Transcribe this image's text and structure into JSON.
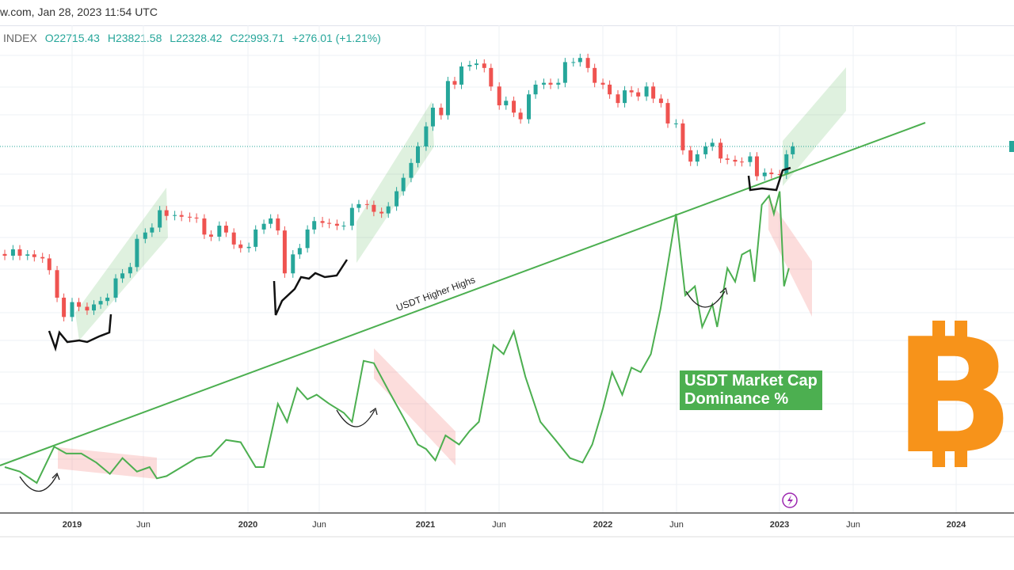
{
  "header": {
    "source_date": "w.com, Jan 28, 2023 11:54 UTC"
  },
  "ohlc": {
    "symbol": "INDEX",
    "open": "O22715.43",
    "high": "H23821.58",
    "low": "L22328.42",
    "close": "C22993.71",
    "change": "+276.01 (+1.21%)"
  },
  "colors": {
    "up": "#26a69a",
    "down": "#ef5350",
    "dominance_line": "#4caf50",
    "bitcoin": "#f7931a",
    "event_icon": "#9c27b0"
  },
  "annotations": {
    "trendline_label": "USDT Higher Highs",
    "dominance_label_line1": "USDT Market Cap",
    "dominance_label_line2": "Dominance %"
  },
  "icons": [
    "bitcoin-logo",
    "lightning-event-icon"
  ],
  "chart_data": {
    "type": "candlestick+line",
    "title": "",
    "y_scale": "log",
    "grid": true,
    "x_ticks": [
      "2019",
      "Jun",
      "2020",
      "Jun",
      "2021",
      "Jun",
      "2022",
      "Jun",
      "2023",
      "Jun",
      "2024"
    ],
    "last_price": 22993.71,
    "price_closes": [
      [
        "2018-08-15",
        6500
      ],
      [
        "2018-09-01",
        7000
      ],
      [
        "2018-09-15",
        6500
      ],
      [
        "2018-10-01",
        6600
      ],
      [
        "2018-10-15",
        6400
      ],
      [
        "2018-11-01",
        6300
      ],
      [
        "2018-11-15",
        5500
      ],
      [
        "2018-12-01",
        4000
      ],
      [
        "2018-12-15",
        3200
      ],
      [
        "2019-01-01",
        3800
      ],
      [
        "2019-01-15",
        3600
      ],
      [
        "2019-02-01",
        3450
      ],
      [
        "2019-02-15",
        3700
      ],
      [
        "2019-03-01",
        3850
      ],
      [
        "2019-03-15",
        4000
      ],
      [
        "2019-04-01",
        5000
      ],
      [
        "2019-04-15",
        5300
      ],
      [
        "2019-05-01",
        5700
      ],
      [
        "2019-05-15",
        7900
      ],
      [
        "2019-06-01",
        8500
      ],
      [
        "2019-06-15",
        9000
      ],
      [
        "2019-07-01",
        11000
      ],
      [
        "2019-07-15",
        10300
      ],
      [
        "2019-08-01",
        10400
      ],
      [
        "2019-08-15",
        10200
      ],
      [
        "2019-09-01",
        10100
      ],
      [
        "2019-09-15",
        10000
      ],
      [
        "2019-10-01",
        8300
      ],
      [
        "2019-10-15",
        8100
      ],
      [
        "2019-11-01",
        9200
      ],
      [
        "2019-11-15",
        8500
      ],
      [
        "2019-12-01",
        7400
      ],
      [
        "2019-12-15",
        7100
      ],
      [
        "2020-01-01",
        7200
      ],
      [
        "2020-01-15",
        8800
      ],
      [
        "2020-02-01",
        9400
      ],
      [
        "2020-02-15",
        10000
      ],
      [
        "2020-03-01",
        8700
      ],
      [
        "2020-03-15",
        5300
      ],
      [
        "2020-04-01",
        6600
      ],
      [
        "2020-04-15",
        7100
      ],
      [
        "2020-05-01",
        8800
      ],
      [
        "2020-05-15",
        9700
      ],
      [
        "2020-06-01",
        9500
      ],
      [
        "2020-06-15",
        9400
      ],
      [
        "2020-07-01",
        9200
      ],
      [
        "2020-07-15",
        9200
      ],
      [
        "2020-08-01",
        11300
      ],
      [
        "2020-08-15",
        11800
      ],
      [
        "2020-09-01",
        11700
      ],
      [
        "2020-09-15",
        10800
      ],
      [
        "2020-10-01",
        10600
      ],
      [
        "2020-10-15",
        11500
      ],
      [
        "2020-11-01",
        13700
      ],
      [
        "2020-11-15",
        16000
      ],
      [
        "2020-12-01",
        19000
      ],
      [
        "2020-12-15",
        23000
      ],
      [
        "2021-01-01",
        29000
      ],
      [
        "2021-01-15",
        36000
      ],
      [
        "2021-02-01",
        33000
      ],
      [
        "2021-02-15",
        49000
      ],
      [
        "2021-03-01",
        47000
      ],
      [
        "2021-03-15",
        58000
      ],
      [
        "2021-04-01",
        59000
      ],
      [
        "2021-04-15",
        60000
      ],
      [
        "2021-05-01",
        57000
      ],
      [
        "2021-05-15",
        46000
      ],
      [
        "2021-06-01",
        37000
      ],
      [
        "2021-06-15",
        39000
      ],
      [
        "2021-07-01",
        34000
      ],
      [
        "2021-07-15",
        31500
      ],
      [
        "2021-08-01",
        42000
      ],
      [
        "2021-08-15",
        47000
      ],
      [
        "2021-09-01",
        48000
      ],
      [
        "2021-09-15",
        47000
      ],
      [
        "2021-10-01",
        48000
      ],
      [
        "2021-10-15",
        61000
      ],
      [
        "2021-11-01",
        61000
      ],
      [
        "2021-11-15",
        64000
      ],
      [
        "2021-12-01",
        57000
      ],
      [
        "2021-12-15",
        48000
      ],
      [
        "2022-01-01",
        47000
      ],
      [
        "2022-01-15",
        42000
      ],
      [
        "2022-02-01",
        38000
      ],
      [
        "2022-02-15",
        44000
      ],
      [
        "2022-03-01",
        43000
      ],
      [
        "2022-03-15",
        41000
      ],
      [
        "2022-04-01",
        46000
      ],
      [
        "2022-04-15",
        40000
      ],
      [
        "2022-05-01",
        38000
      ],
      [
        "2022-05-15",
        30000
      ],
      [
        "2022-06-01",
        30000
      ],
      [
        "2022-06-15",
        22000
      ],
      [
        "2022-07-01",
        19300
      ],
      [
        "2022-07-15",
        21000
      ],
      [
        "2022-08-01",
        23000
      ],
      [
        "2022-08-15",
        24000
      ],
      [
        "2022-09-01",
        20000
      ],
      [
        "2022-09-15",
        19700
      ],
      [
        "2022-10-01",
        19300
      ],
      [
        "2022-10-15",
        19200
      ],
      [
        "2022-11-01",
        20500
      ],
      [
        "2022-11-15",
        16300
      ],
      [
        "2022-12-01",
        17000
      ],
      [
        "2022-12-15",
        16700
      ],
      [
        "2023-01-01",
        16600
      ],
      [
        "2023-01-15",
        21000
      ],
      [
        "2023-01-28",
        22993.71
      ]
    ],
    "usdt_dominance_pct": [
      [
        "2018-08-15",
        2.0
      ],
      [
        "2018-09-15",
        1.9
      ],
      [
        "2018-10-20",
        1.65
      ],
      [
        "2018-11-25",
        2.45
      ],
      [
        "2018-12-20",
        2.3
      ],
      [
        "2019-01-20",
        2.3
      ],
      [
        "2019-02-20",
        2.1
      ],
      [
        "2019-03-20",
        1.85
      ],
      [
        "2019-04-15",
        2.2
      ],
      [
        "2019-05-15",
        1.9
      ],
      [
        "2019-06-10",
        2.0
      ],
      [
        "2019-06-25",
        1.75
      ],
      [
        "2019-07-15",
        1.8
      ],
      [
        "2019-08-15",
        2.0
      ],
      [
        "2019-09-15",
        2.2
      ],
      [
        "2019-10-15",
        2.25
      ],
      [
        "2019-11-15",
        2.6
      ],
      [
        "2019-12-15",
        2.55
      ],
      [
        "2020-01-15",
        2.0
      ],
      [
        "2020-02-01",
        2.0
      ],
      [
        "2020-03-01",
        3.4
      ],
      [
        "2020-03-20",
        3.0
      ],
      [
        "2020-04-10",
        3.75
      ],
      [
        "2020-05-01",
        3.5
      ],
      [
        "2020-05-20",
        3.6
      ],
      [
        "2020-06-15",
        3.4
      ],
      [
        "2020-07-15",
        3.2
      ],
      [
        "2020-08-01",
        3.0
      ],
      [
        "2020-08-25",
        4.35
      ],
      [
        "2020-09-15",
        4.3
      ],
      [
        "2020-10-15",
        3.7
      ],
      [
        "2020-11-15",
        3.1
      ],
      [
        "2020-12-15",
        2.5
      ],
      [
        "2021-01-01",
        2.4
      ],
      [
        "2021-01-20",
        2.15
      ],
      [
        "2021-02-10",
        2.7
      ],
      [
        "2021-03-10",
        2.5
      ],
      [
        "2021-04-01",
        2.8
      ],
      [
        "2021-04-20",
        3.0
      ],
      [
        "2021-05-20",
        4.7
      ],
      [
        "2021-06-10",
        4.5
      ],
      [
        "2021-07-01",
        5.0
      ],
      [
        "2021-07-25",
        4.0
      ],
      [
        "2021-08-25",
        3.0
      ],
      [
        "2021-09-25",
        2.6
      ],
      [
        "2021-10-25",
        2.2
      ],
      [
        "2021-11-20",
        2.1
      ],
      [
        "2021-12-10",
        2.5
      ],
      [
        "2022-01-01",
        3.3
      ],
      [
        "2022-01-20",
        4.1
      ],
      [
        "2022-02-10",
        3.6
      ],
      [
        "2022-03-01",
        4.2
      ],
      [
        "2022-03-20",
        4.1
      ],
      [
        "2022-04-10",
        4.5
      ],
      [
        "2022-04-30",
        5.5
      ],
      [
        "2022-05-20",
        6.8
      ],
      [
        "2022-06-01",
        7.6
      ],
      [
        "2022-06-20",
        5.8
      ],
      [
        "2022-07-10",
        6.0
      ],
      [
        "2022-07-25",
        5.1
      ],
      [
        "2022-08-15",
        5.6
      ],
      [
        "2022-08-25",
        5.1
      ],
      [
        "2022-09-15",
        6.4
      ],
      [
        "2022-10-01",
        6.1
      ],
      [
        "2022-10-15",
        6.7
      ],
      [
        "2022-11-01",
        6.8
      ],
      [
        "2022-11-10",
        6.1
      ],
      [
        "2022-11-25",
        7.8
      ],
      [
        "2022-12-10",
        8.0
      ],
      [
        "2022-12-20",
        7.6
      ],
      [
        "2023-01-01",
        8.1
      ],
      [
        "2023-01-10",
        6.0
      ],
      [
        "2023-01-20",
        6.4
      ]
    ]
  }
}
